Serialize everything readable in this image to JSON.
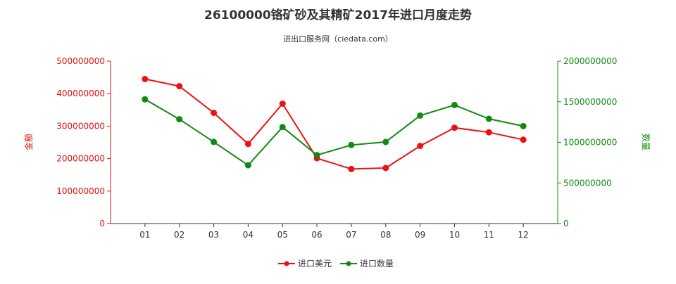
{
  "chart_data": {
    "type": "line",
    "title": "26100000铬矿砂及其精矿2017年进口月度走势",
    "subtitle": "进出口服务网（ciedata.com）",
    "categories": [
      "01",
      "02",
      "03",
      "04",
      "05",
      "06",
      "07",
      "08",
      "09",
      "10",
      "11",
      "12"
    ],
    "y_left": {
      "label": "金额",
      "min": 0,
      "max": 500000000,
      "ticks": [
        0,
        100000000,
        200000000,
        300000000,
        400000000,
        500000000
      ],
      "tick_labels": [
        "0",
        "100000000",
        "200000000",
        "300000000",
        "400000000",
        "500000000"
      ],
      "color": "#e01010"
    },
    "y_right": {
      "label": "数量",
      "min": 0,
      "max": 2000000000,
      "ticks": [
        0,
        500000000,
        1000000000,
        1500000000,
        2000000000
      ],
      "tick_labels": [
        "0",
        "500000000",
        "1000000000",
        "1500000000",
        "2000000000"
      ],
      "color": "#128a12"
    },
    "series": [
      {
        "name": "进口美元",
        "axis": "left",
        "color": "#ee1111",
        "values": [
          445000000,
          423000000,
          341000000,
          245000000,
          369000000,
          201000000,
          168000000,
          171000000,
          239000000,
          295000000,
          281000000,
          258000000
        ]
      },
      {
        "name": "进口数量",
        "axis": "right",
        "color": "#128a12",
        "values": [
          1530000000,
          1285000000,
          1005000000,
          718000000,
          1188000000,
          843000000,
          967000000,
          1005000000,
          1330000000,
          1460000000,
          1290000000,
          1200000000
        ]
      }
    ],
    "legend_position": "bottom",
    "grid": false
  }
}
